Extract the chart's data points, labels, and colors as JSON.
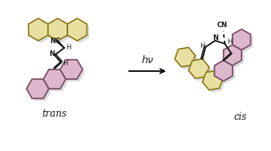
{
  "background_color": "#ffffff",
  "arrow_label": "hν",
  "trans_label": "trans",
  "cis_label": "cis",
  "yellow_color": "#e8e0a0",
  "yellow_stroke": "#8a7818",
  "pink_color": "#ddb8cc",
  "pink_stroke": "#7a5068",
  "bond_color": "#1a1a1a",
  "shadow_color": "#b0b0b0",
  "r_trans": 14,
  "r_cis": 13
}
